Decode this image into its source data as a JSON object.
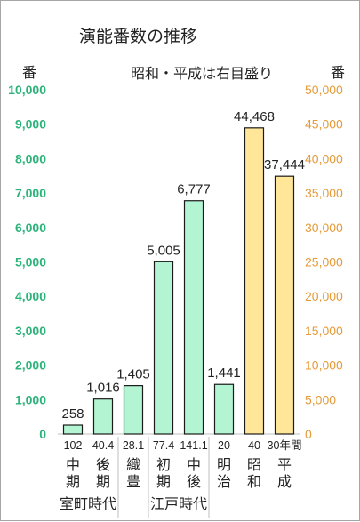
{
  "chart_data": {
    "type": "bar",
    "title": "演能番数の推移",
    "note": "昭和・平成は右目盛り",
    "left_axis": {
      "unit": "番",
      "ylim": [
        0,
        10000
      ],
      "ticks": [
        "0",
        "1,000",
        "2,000",
        "3,000",
        "4,000",
        "5,000",
        "6,000",
        "7,000",
        "8,000",
        "9,000",
        "10,000"
      ],
      "color": "#2db37a"
    },
    "right_axis": {
      "unit": "番",
      "ylim": [
        0,
        50000
      ],
      "ticks": [
        "0",
        "5,000",
        "10,000",
        "15,000",
        "20,000",
        "25,000",
        "30,000",
        "35,000",
        "40,000",
        "45,000",
        "50,000"
      ],
      "color": "#e59b3a"
    },
    "bars": [
      {
        "period": "中\n期",
        "years": "102",
        "value": 258,
        "value_label": "258",
        "axis": "left"
      },
      {
        "period": "後\n期",
        "years": "40.4",
        "value": 1016,
        "value_label": "1,016",
        "axis": "left"
      },
      {
        "period": "織\n豊",
        "years": "28.1",
        "value": 1405,
        "value_label": "1,405",
        "axis": "left"
      },
      {
        "period": "初\n期",
        "years": "77.4",
        "value": 5005,
        "value_label": "5,005",
        "axis": "left"
      },
      {
        "period": "中\n後",
        "years": "141.1",
        "value": 6777,
        "value_label": "6,777",
        "axis": "left"
      },
      {
        "period": "明\n治",
        "years": "20",
        "value": 1441,
        "value_label": "1,441",
        "axis": "left"
      },
      {
        "period": "昭\n和",
        "years": "40",
        "value": 44468,
        "value_label": "44,468",
        "axis": "right"
      },
      {
        "period": "平\n成",
        "years": "30年間",
        "value": 37444,
        "value_label": "37,444",
        "axis": "right"
      }
    ],
    "groups": [
      {
        "label": "室町時代",
        "from": 0,
        "to": 1
      },
      {
        "label": "江戸時代",
        "from": 3,
        "to": 4
      }
    ],
    "colors": {
      "left_bar": "#b3f5d2",
      "right_bar": "#ffe699",
      "bar_stroke": "#1a1a1a"
    }
  }
}
